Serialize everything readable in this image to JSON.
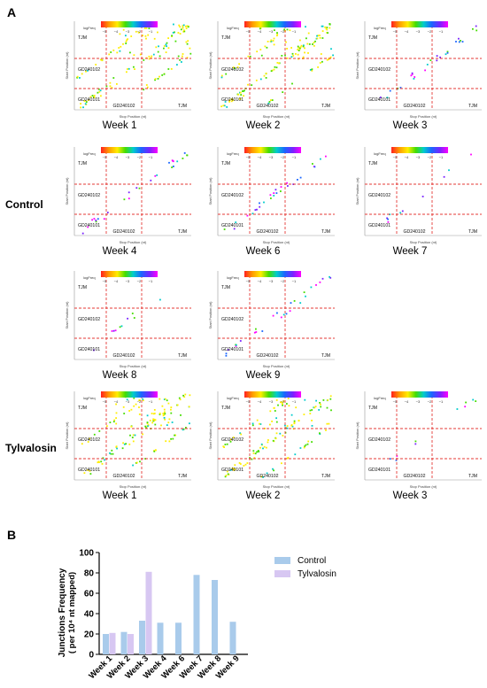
{
  "panels": {
    "a": "A",
    "b": "B"
  },
  "groups": {
    "control": "Control",
    "tylvalosin": "Tylvalosin"
  },
  "heatmaps": {
    "colorbar_label": "logFreq",
    "colorbar_ticks": [
      "−5",
      "−4",
      "−3",
      "−2",
      "−1"
    ],
    "ylabel": "Start Position (nt)",
    "xlabel": "Stop Position (nt)",
    "regions": [
      "TJM",
      "GD240102",
      "GD240101"
    ],
    "bottom_region": "GD240102",
    "bottom_right_region": "TJM",
    "colors": {
      "colorbar": [
        "#ff2020",
        "#ff9a00",
        "#ffee00",
        "#44dd00",
        "#00cccc",
        "#1a66ff",
        "#7a22ff",
        "#ff00ff"
      ],
      "guide": "#e53935",
      "axis": "#999999"
    },
    "cells": [
      {
        "week": "Week 1",
        "group": "control",
        "density": "high"
      },
      {
        "week": "Week 2",
        "group": "control",
        "density": "high"
      },
      {
        "week": "Week 3",
        "group": "control",
        "density": "low"
      },
      {
        "week": "Week 4",
        "group": "control",
        "density": "low"
      },
      {
        "week": "Week 6",
        "group": "control",
        "density": "low"
      },
      {
        "week": "Week 7",
        "group": "control",
        "density": "sparse"
      },
      {
        "week": "Week 8",
        "group": "control",
        "density": "sparse"
      },
      {
        "week": "Week 9",
        "group": "control",
        "density": "low"
      },
      {
        "week": "Week 1",
        "group": "tylvalosin",
        "density": "high"
      },
      {
        "week": "Week 2",
        "group": "tylvalosin",
        "density": "high"
      },
      {
        "week": "Week 3",
        "group": "tylvalosin",
        "density": "sparse"
      }
    ]
  },
  "chart_data": {
    "type": "bar",
    "ylabel": "Junctions Frequency",
    "ylabel_2": "( per 10⁴ nt mapped)",
    "xlabel": "",
    "ylim": [
      0,
      100
    ],
    "yticks": [
      0,
      20,
      40,
      60,
      80,
      100
    ],
    "categories": [
      "Week 1",
      "Week 2",
      "Week 3",
      "Week 4",
      "Week 6",
      "Week 7",
      "Week 8",
      "Week 9"
    ],
    "series": [
      {
        "name": "Control",
        "color": "#a9cbeb",
        "values": [
          20,
          22,
          33,
          31,
          31,
          78,
          73,
          32
        ]
      },
      {
        "name": "Tylvalosin",
        "color": "#d7c7f2",
        "values": [
          21,
          20,
          81,
          null,
          null,
          null,
          null,
          null
        ]
      }
    ],
    "legend_position": "top-right",
    "grid": false
  }
}
